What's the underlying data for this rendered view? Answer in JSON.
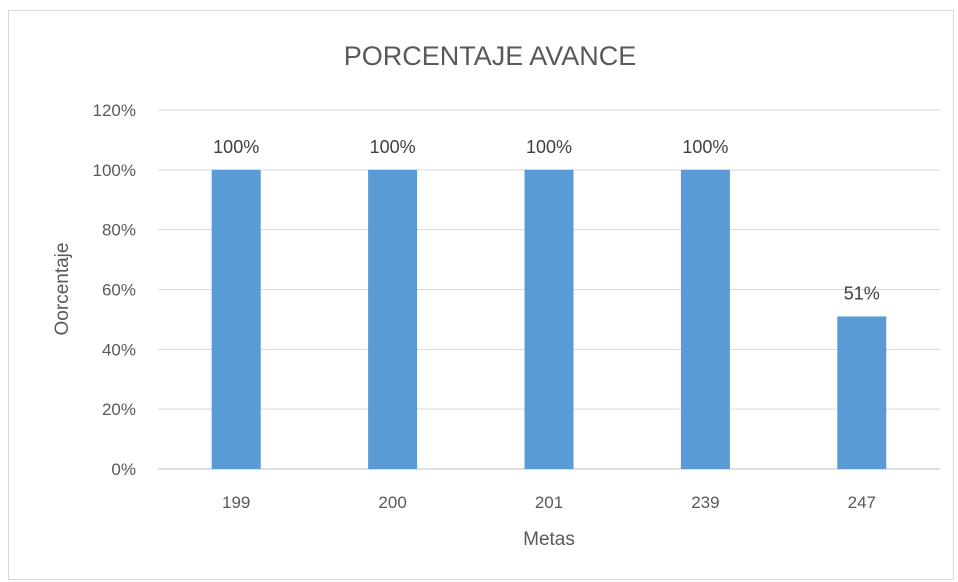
{
  "chart_data": {
    "type": "bar",
    "title": "PORCENTAJE AVANCE",
    "xlabel": "Metas",
    "ylabel": "Oorcentaje",
    "categories": [
      "199",
      "200",
      "201",
      "239",
      "247"
    ],
    "values": [
      100,
      100,
      100,
      100,
      51
    ],
    "data_labels": [
      "100%",
      "100%",
      "100%",
      "100%",
      "51%"
    ],
    "yticks": [
      "0%",
      "20%",
      "40%",
      "60%",
      "80%",
      "100%",
      "120%"
    ],
    "ylim": [
      0,
      120
    ],
    "grid": true,
    "legend": "none",
    "bar_color": "#5b9bd5"
  }
}
